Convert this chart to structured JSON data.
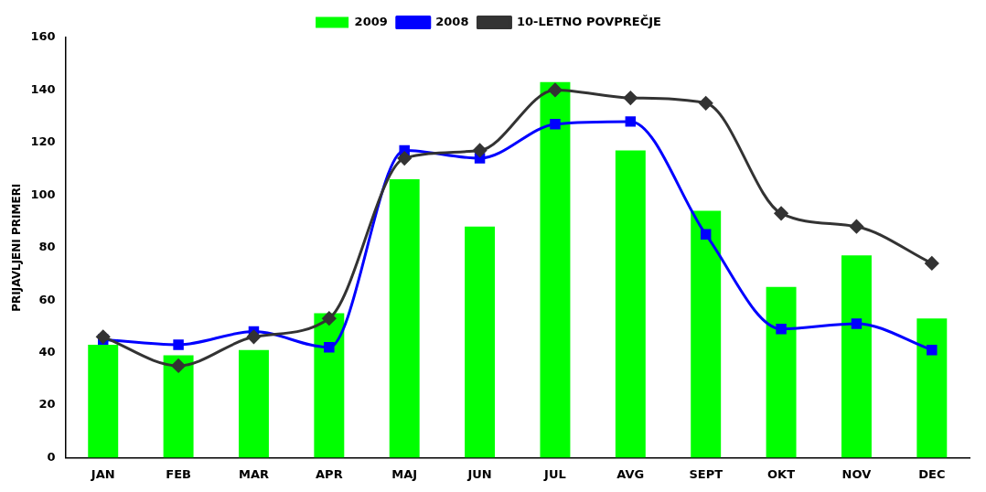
{
  "chart_data": {
    "type": "bar",
    "ylabel": "PRIJAVLJENI PRIMERI",
    "categories": [
      "JAN",
      "FEB",
      "MAR",
      "APR",
      "MAJ",
      "JUN",
      "JUL",
      "AVG",
      "SEPT",
      "OKT",
      "NOV",
      "DEC"
    ],
    "series": [
      {
        "name": "2009",
        "color": "#00ff00",
        "values": [
          43,
          39,
          41,
          55,
          106,
          88,
          143,
          117,
          94,
          65,
          77,
          53
        ]
      },
      {
        "name": "2008",
        "type": "line",
        "color": "#0000ff",
        "marker": "square",
        "values": [
          45,
          43,
          48,
          42,
          117,
          114,
          127,
          128,
          85,
          49,
          51,
          41
        ]
      },
      {
        "name": "10-LETNO POVPREČJE",
        "type": "line",
        "color": "#333333",
        "marker": "diamond",
        "values": [
          46,
          35,
          46,
          53,
          114,
          117,
          140,
          137,
          135,
          93,
          88,
          74
        ]
      }
    ],
    "ylim": [
      0,
      160
    ],
    "yticks": [
      0,
      20,
      40,
      60,
      80,
      100,
      120,
      140,
      160
    ],
    "grid": false,
    "legend": "top"
  }
}
